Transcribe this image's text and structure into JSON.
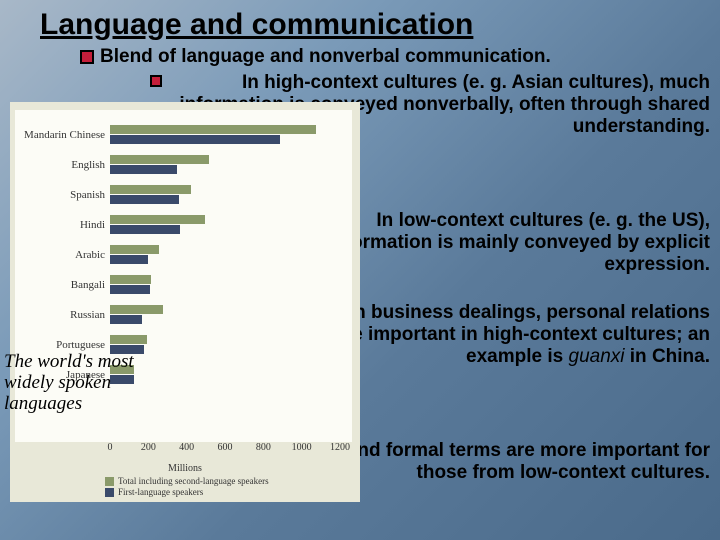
{
  "title": "Language and communication",
  "bullets": {
    "b1": "Blend of language and nonverbal communication.",
    "b2": "In high-context cultures (e. g. Asian cultures), much information is conveyed nonverbally, often through shared understanding.",
    "b3": "In low-context cultures (e. g. the US), information is mainly conveyed by explicit expression.",
    "b4_pre": "In business dealings, personal relations are important in high-context cultures; an example is ",
    "b4_em": "guanxi",
    "b4_post": " in China.",
    "b5": "Written contracts and formal terms are more important for those from low-context cultures."
  },
  "caption": "The world's most widely spoken languages",
  "chart": {
    "type": "bar",
    "categories": [
      "Mandarin Chinese",
      "English",
      "Spanish",
      "Hindi",
      "Arabic",
      "Bangali",
      "Russian",
      "Portuguese",
      "Japanese"
    ],
    "total": [
      1075,
      514,
      425,
      496,
      256,
      215,
      275,
      194,
      126
    ],
    "first": [
      885,
      347,
      358,
      366,
      200,
      207,
      165,
      176,
      125
    ],
    "x_max": 1200,
    "x_ticks": [
      0,
      200,
      400,
      600,
      800,
      1000,
      1200
    ],
    "x_label": "Millions",
    "colors": {
      "total": "#8a9a6a",
      "first": "#3a4a6a",
      "bg": "#e8e8d8",
      "plot_bg": "#fcfcf6",
      "text": "#333333"
    },
    "legend": {
      "l1": "Total including second-language speakers",
      "l2": "First-language speakers"
    },
    "label_fontsize": 11,
    "tick_fontsize": 10
  }
}
